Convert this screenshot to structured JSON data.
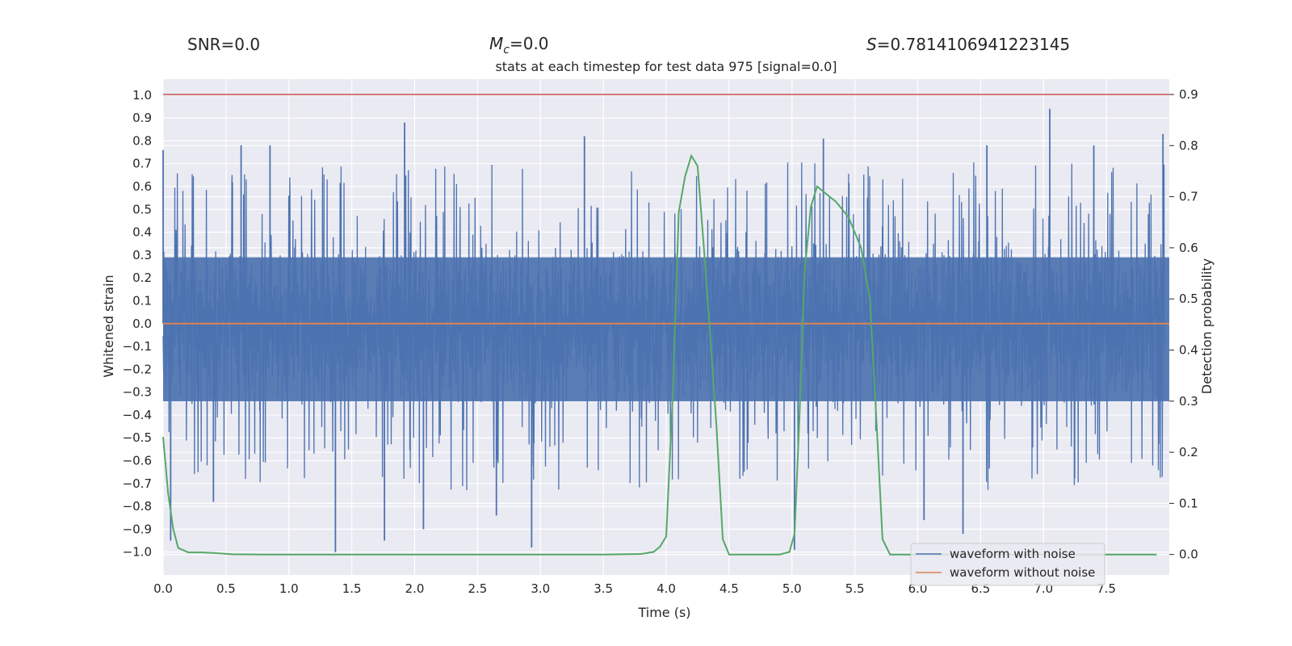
{
  "chart_data": {
    "type": "line",
    "title": "stats at each timestep for test data 975 [signal=0.0]",
    "stats": {
      "snr": "SNR=0.0",
      "mc_symbol": "M",
      "mc_sub": "c",
      "mc_value": "=0.0",
      "s_symbol": "S",
      "s_value": "=0.7814106941223145"
    },
    "xlabel": "Time (s)",
    "ylabel": "Whitened strain",
    "y2label": "Detection probability",
    "xlim": [
      0.0,
      8.0
    ],
    "ylim": [
      -1.1,
      1.07
    ],
    "y2lim": [
      -0.04,
      0.93
    ],
    "xticks": [
      "0.0",
      "0.5",
      "1.0",
      "1.5",
      "2.0",
      "2.5",
      "3.0",
      "3.5",
      "4.0",
      "4.5",
      "5.0",
      "5.5",
      "6.0",
      "6.5",
      "7.0",
      "7.5"
    ],
    "yticks": [
      "1.0",
      "0.9",
      "0.8",
      "0.7",
      "0.6",
      "0.5",
      "0.4",
      "0.3",
      "0.2",
      "0.1",
      "0.0",
      "-0.1",
      "-0.2",
      "-0.3",
      "-0.4",
      "-0.5",
      "-0.6",
      "-0.7",
      "-0.8",
      "-0.9",
      "-1.0"
    ],
    "y2ticks": [
      "0.9",
      "0.8",
      "0.7",
      "0.6",
      "0.5",
      "0.4",
      "0.3",
      "0.2",
      "0.1",
      "0.0"
    ],
    "threshold": 0.9,
    "series": [
      {
        "name": "waveform with noise",
        "color": "#4c72b0",
        "n_samples": 4096,
        "amplitude": 0.5
      },
      {
        "name": "waveform without noise",
        "color": "#dd8452",
        "value": 0.0
      },
      {
        "name": "detection probability",
        "color": "#55a868",
        "axis": "right",
        "x": [
          0.0,
          0.04,
          0.08,
          0.12,
          0.2,
          0.3,
          0.4,
          0.55,
          0.8,
          1.5,
          2.5,
          3.5,
          3.8,
          3.9,
          3.95,
          4.0,
          4.05,
          4.1,
          4.15,
          4.2,
          4.25,
          4.3,
          4.35,
          4.4,
          4.45,
          4.5,
          4.6,
          4.9,
          4.98,
          5.02,
          5.06,
          5.1,
          5.15,
          5.2,
          5.25,
          5.3,
          5.35,
          5.45,
          5.55,
          5.62,
          5.67,
          5.72,
          5.78,
          5.85,
          5.95,
          6.2,
          7.0,
          7.9
        ],
        "y": [
          0.23,
          0.12,
          0.05,
          0.013,
          0.004,
          0.004,
          0.003,
          0.0005,
          0.0,
          0.0,
          0.0,
          0.0,
          0.001,
          0.005,
          0.015,
          0.035,
          0.3,
          0.67,
          0.74,
          0.78,
          0.76,
          0.6,
          0.43,
          0.25,
          0.03,
          0.0,
          0.0,
          0.0,
          0.005,
          0.04,
          0.27,
          0.55,
          0.68,
          0.72,
          0.71,
          0.7,
          0.69,
          0.66,
          0.6,
          0.5,
          0.27,
          0.03,
          0.0,
          0.0,
          0.0,
          0.0,
          0.0,
          0.0
        ]
      }
    ],
    "spikes": [
      {
        "x": 0.0,
        "y": 0.76
      },
      {
        "x": 0.62,
        "y": 0.78
      },
      {
        "x": 0.85,
        "y": 0.78
      },
      {
        "x": 1.92,
        "y": 0.88
      },
      {
        "x": 3.35,
        "y": 0.82
      },
      {
        "x": 5.25,
        "y": 0.81
      },
      {
        "x": 6.55,
        "y": 0.78
      },
      {
        "x": 7.05,
        "y": 0.94
      },
      {
        "x": 7.4,
        "y": 0.78
      },
      {
        "x": 7.95,
        "y": 0.83
      },
      {
        "x": 1.37,
        "y": -1.0
      },
      {
        "x": 1.76,
        "y": -0.95
      },
      {
        "x": 2.07,
        "y": -0.9
      },
      {
        "x": 2.93,
        "y": -0.98
      },
      {
        "x": 5.02,
        "y": -0.99
      },
      {
        "x": 6.36,
        "y": -0.92
      },
      {
        "x": 6.05,
        "y": -0.86
      },
      {
        "x": 0.06,
        "y": -0.95
      },
      {
        "x": 0.4,
        "y": -0.78
      },
      {
        "x": 2.65,
        "y": -0.84
      }
    ],
    "legend": {
      "position": "lower-right",
      "entries": [
        "waveform with noise",
        "waveform without noise"
      ]
    },
    "colors": {
      "background": "#eaeaf2",
      "grid": "#ffffff",
      "threshold": "#c44e52"
    }
  }
}
